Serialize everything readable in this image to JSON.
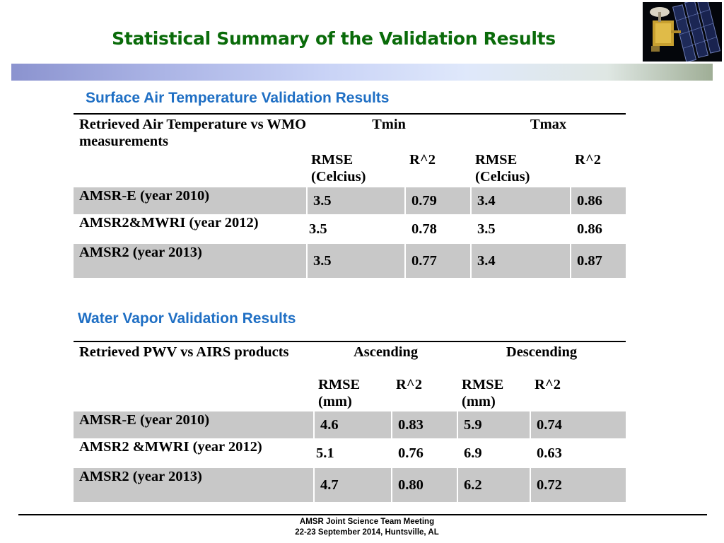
{
  "slide_title": "Statistical Summary of the Validation Results",
  "sat_table": {
    "section_title": "Surface Air Temperature Validation Results",
    "header_label": "Retrieved Air Temperature vs  WMO measurements",
    "group1": "Tmin",
    "group2": "Tmax",
    "sub": [
      "RMSE (Celcius)",
      "R^2",
      "RMSE (Celcius)",
      "R^2"
    ],
    "rows": [
      {
        "label": "AMSR-E (year 2010)",
        "values": [
          "3.5",
          "0.79",
          "3.4",
          "0.86"
        ]
      },
      {
        "label": "AMSR2&MWRI  (year 2012)",
        "values": [
          "3.5",
          "0.78",
          "3.5",
          "0.86"
        ]
      },
      {
        "label": "AMSR2 (year 2013)",
        "values": [
          "3.5",
          "0.77",
          "3.4",
          "0.87"
        ]
      }
    ]
  },
  "wv_table": {
    "section_title": "Water Vapor Validation Results",
    "header_label": "Retrieved   PWV   vs   AIRS products",
    "group1": "Ascending",
    "group2": "Descending",
    "sub": [
      "RMSE (mm)",
      "R^2",
      "RMSE (mm)",
      "R^2"
    ],
    "rows": [
      {
        "label": "AMSR-E (year 2010)",
        "values": [
          "4.6",
          "0.83",
          "5.9",
          "0.74"
        ]
      },
      {
        "label": "AMSR2 &MWRI  (year 2012)",
        "values": [
          "5.1",
          "0.76",
          "6.9",
          "0.63"
        ]
      },
      {
        "label": "AMSR2 (year 2013)",
        "values": [
          "4.7",
          "0.80",
          "6.2",
          "0.72"
        ]
      }
    ]
  },
  "footer": {
    "line1": "AMSR Joint Science Team Meeting",
    "line2": "22-23 September 2014, Huntsville, AL"
  }
}
